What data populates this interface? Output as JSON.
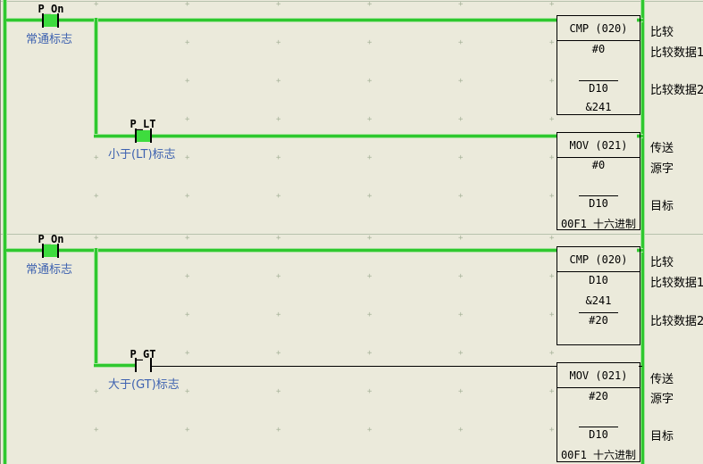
{
  "colors": {
    "background": "#EBEADB",
    "energized": "#2FC82F",
    "energized_halo": "#A6E39C",
    "contact_fill": "#3EDC3E",
    "comment_text": "#3E62B0",
    "grid_dot": "#A9B49B",
    "divider": "#B7C2AC"
  },
  "rungs": [
    {
      "contacts": [
        {
          "name": "P_On",
          "comment": "常通标志"
        },
        {
          "name": "P_LT",
          "comment": "小于(LT)标志"
        }
      ],
      "blocks": [
        {
          "title": "CMP (020)",
          "rows": [
            "#0",
            "D10",
            "&241"
          ],
          "side_labels": [
            "比较",
            "比较数据1",
            "比较数据2"
          ]
        },
        {
          "title": "MOV (021)",
          "rows": [
            "#0",
            "D10",
            "00F1 十六进制"
          ],
          "side_labels": [
            "传送",
            "源字",
            "目标"
          ]
        }
      ]
    },
    {
      "contacts": [
        {
          "name": "P_On",
          "comment": "常通标志"
        },
        {
          "name": "P_GT",
          "comment": "大于(GT)标志"
        }
      ],
      "blocks": [
        {
          "title": "CMP (020)",
          "rows": [
            "D10",
            "&241",
            "#20"
          ],
          "side_labels": [
            "比较",
            "比较数据1",
            "比较数据2"
          ]
        },
        {
          "title": "MOV (021)",
          "rows": [
            "#20",
            "D10",
            "00F1 十六进制"
          ],
          "side_labels": [
            "传送",
            "源字",
            "目标"
          ]
        }
      ]
    }
  ]
}
